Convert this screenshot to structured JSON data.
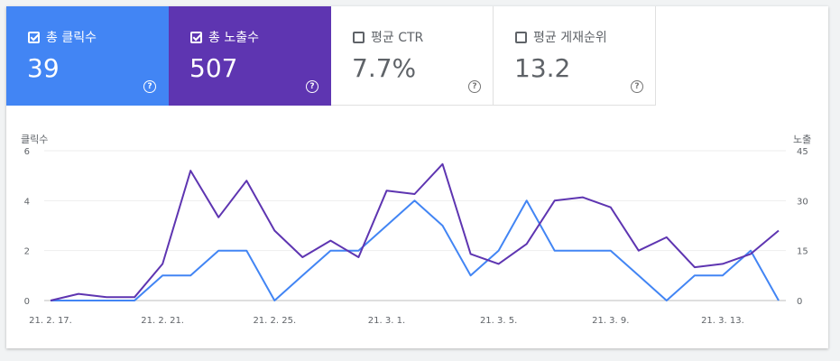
{
  "metrics": [
    {
      "label": "총 클릭수",
      "value": "39",
      "checked": true
    },
    {
      "label": "총 노출수",
      "value": "507",
      "checked": true
    },
    {
      "label": "평균 CTR",
      "value": "7.7%",
      "checked": false
    },
    {
      "label": "평균 게재순위",
      "value": "13.2",
      "checked": false
    }
  ],
  "help_glyph": "?",
  "colors": {
    "clicks": "#4285f4",
    "impressions": "#5e35b1"
  },
  "chart_data": {
    "type": "line",
    "yleft_label": "클릭수",
    "yright_label": "노출",
    "yleft_ticks": [
      "0",
      "2",
      "4",
      "6"
    ],
    "yright_ticks": [
      "0",
      "15",
      "30",
      "45"
    ],
    "yleft_lim": [
      0,
      6
    ],
    "yright_lim": [
      0,
      45
    ],
    "x": [
      "21. 2. 17.",
      "21. 2. 18.",
      "21. 2. 19.",
      "21. 2. 20.",
      "21. 2. 21.",
      "21. 2. 22.",
      "21. 2. 23.",
      "21. 2. 24.",
      "21. 2. 25.",
      "21. 2. 26.",
      "21. 2. 27.",
      "21. 2. 28.",
      "21. 3. 1.",
      "21. 3. 2.",
      "21. 3. 3.",
      "21. 3. 4.",
      "21. 3. 5.",
      "21. 3. 6.",
      "21. 3. 7.",
      "21. 3. 8.",
      "21. 3. 9.",
      "21. 3. 10.",
      "21. 3. 11.",
      "21. 3. 12.",
      "21. 3. 13.",
      "21. 3. 14.",
      "21. 3. 15."
    ],
    "x_tick_labels": [
      "21. 2. 17.",
      "21. 2. 21.",
      "21. 2. 25.",
      "21. 3. 1.",
      "21. 3. 5.",
      "21. 3. 9.",
      "21. 3. 13."
    ],
    "grid": true,
    "series": [
      {
        "name": "클릭수",
        "axis": "left",
        "values": [
          0,
          0,
          0,
          0,
          1,
          1,
          2,
          2,
          0,
          1,
          2,
          2,
          3,
          4,
          3,
          1,
          2,
          4,
          2,
          2,
          2,
          1,
          0,
          1,
          1,
          2,
          0
        ]
      },
      {
        "name": "노출",
        "axis": "right",
        "values": [
          0,
          2,
          1,
          1,
          11,
          39,
          25,
          36,
          21,
          13,
          18,
          13,
          33,
          32,
          41,
          14,
          11,
          17,
          30,
          31,
          28,
          15,
          19,
          10,
          11,
          14,
          21
        ]
      }
    ]
  }
}
